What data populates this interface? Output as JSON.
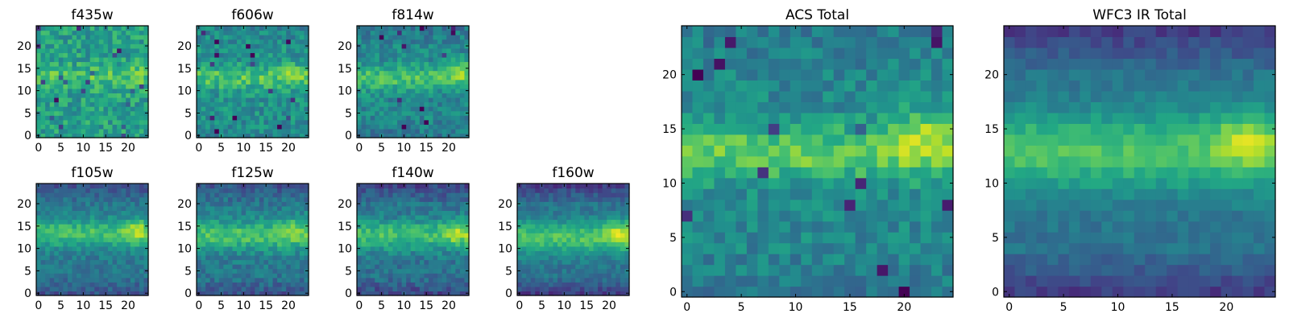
{
  "chart_data": [
    {
      "type": "heatmap",
      "title": "f435w",
      "grid_size": [
        25,
        25
      ],
      "xlim": [
        -0.5,
        24.5
      ],
      "ylim": [
        -0.5,
        24.5
      ],
      "xticks": [
        0,
        5,
        10,
        15,
        20
      ],
      "yticks": [
        0,
        5,
        10,
        15,
        20
      ],
      "colormap": "viridis",
      "pattern": {
        "base": 0.56,
        "band": 0.16,
        "band_center": 13,
        "band_width": 2.6,
        "hot_x": 22,
        "hot_y": 15,
        "hot": 0.04,
        "noise": 0.15,
        "edge_dark": 0.0,
        "block": 1,
        "seed": 3
      }
    },
    {
      "type": "heatmap",
      "title": "f606w",
      "grid_size": [
        25,
        25
      ],
      "xlim": [
        -0.5,
        24.5
      ],
      "ylim": [
        -0.5,
        24.5
      ],
      "xticks": [
        0,
        5,
        10,
        15,
        20
      ],
      "yticks": [
        0,
        5,
        10,
        15,
        20
      ],
      "colormap": "viridis",
      "pattern": {
        "base": 0.5,
        "band": 0.22,
        "band_center": 13,
        "band_width": 2.6,
        "hot_x": 21,
        "hot_y": 14,
        "hot": 0.1,
        "noise": 0.13,
        "edge_dark": 0.04,
        "block": 1,
        "seed": 7
      }
    },
    {
      "type": "heatmap",
      "title": "f814w",
      "grid_size": [
        25,
        25
      ],
      "xlim": [
        -0.5,
        24.5
      ],
      "ylim": [
        -0.5,
        24.5
      ],
      "xticks": [
        0,
        5,
        10,
        15,
        20
      ],
      "yticks": [
        0,
        5,
        10,
        15,
        20
      ],
      "colormap": "viridis",
      "pattern": {
        "base": 0.46,
        "band": 0.24,
        "band_center": 13,
        "band_width": 2.8,
        "hot_x": 22,
        "hot_y": 15,
        "hot": 0.18,
        "noise": 0.12,
        "edge_dark": 0.06,
        "block": 1,
        "seed": 11
      }
    },
    {
      "type": "heatmap",
      "title": "f105w",
      "grid_size": [
        25,
        25
      ],
      "xlim": [
        -0.5,
        24.5
      ],
      "ylim": [
        -0.5,
        24.5
      ],
      "xticks": [
        0,
        5,
        10,
        15,
        20
      ],
      "yticks": [
        0,
        5,
        10,
        15,
        20
      ],
      "colormap": "viridis",
      "pattern": {
        "base": 0.4,
        "band": 0.3,
        "band_center": 13.5,
        "band_width": 3.2,
        "hot_x": 22,
        "hot_y": 14,
        "hot": 0.2,
        "noise": 0.09,
        "edge_dark": 0.14,
        "block": 1,
        "seed": 19
      }
    },
    {
      "type": "heatmap",
      "title": "f125w",
      "grid_size": [
        25,
        25
      ],
      "xlim": [
        -0.5,
        24.5
      ],
      "ylim": [
        -0.5,
        24.5
      ],
      "xticks": [
        0,
        5,
        10,
        15,
        20
      ],
      "yticks": [
        0,
        5,
        10,
        15,
        20
      ],
      "colormap": "viridis",
      "pattern": {
        "base": 0.4,
        "band": 0.32,
        "band_center": 13,
        "band_width": 3.4,
        "hot_x": 21,
        "hot_y": 15,
        "hot": 0.16,
        "noise": 0.1,
        "edge_dark": 0.14,
        "block": 1,
        "seed": 23
      }
    },
    {
      "type": "heatmap",
      "title": "f140w",
      "grid_size": [
        25,
        25
      ],
      "xlim": [
        -0.5,
        24.5
      ],
      "ylim": [
        -0.5,
        24.5
      ],
      "xticks": [
        0,
        5,
        10,
        15,
        20
      ],
      "yticks": [
        0,
        5,
        10,
        15,
        20
      ],
      "colormap": "viridis",
      "pattern": {
        "base": 0.38,
        "band": 0.32,
        "band_center": 13,
        "band_width": 3.4,
        "hot_x": 22,
        "hot_y": 14,
        "hot": 0.22,
        "noise": 0.1,
        "edge_dark": 0.16,
        "block": 1,
        "seed": 29
      }
    },
    {
      "type": "heatmap",
      "title": "f160w",
      "grid_size": [
        25,
        25
      ],
      "xlim": [
        -0.5,
        24.5
      ],
      "ylim": [
        -0.5,
        24.5
      ],
      "xticks": [
        0,
        5,
        10,
        15,
        20
      ],
      "yticks": [
        0,
        5,
        10,
        15,
        20
      ],
      "colormap": "viridis",
      "pattern": {
        "base": 0.38,
        "band": 0.34,
        "band_center": 12.5,
        "band_width": 3.6,
        "hot_x": 22,
        "hot_y": 14,
        "hot": 0.25,
        "noise": 0.08,
        "edge_dark": 0.2,
        "block": 1,
        "seed": 31
      }
    },
    {
      "type": "heatmap",
      "title": "ACS Total",
      "grid_size": [
        25,
        25
      ],
      "xlim": [
        -0.5,
        24.5
      ],
      "ylim": [
        -0.5,
        24.5
      ],
      "xticks": [
        0,
        5,
        10,
        15,
        20
      ],
      "yticks": [
        0,
        5,
        10,
        15,
        20
      ],
      "colormap": "viridis",
      "pattern": {
        "base": 0.46,
        "band": 0.3,
        "band_center": 12.8,
        "band_width": 2.6,
        "hot_x": 22,
        "hot_y": 15,
        "hot": 0.22,
        "noise": 0.11,
        "edge_dark": 0.05,
        "block": 1,
        "seed": 37
      }
    },
    {
      "type": "heatmap",
      "title": "WFC3 IR Total",
      "grid_size": [
        25,
        25
      ],
      "xlim": [
        -0.5,
        24.5
      ],
      "ylim": [
        -0.5,
        24.5
      ],
      "xticks": [
        0,
        5,
        10,
        15,
        20
      ],
      "yticks": [
        0,
        5,
        10,
        15,
        20
      ],
      "colormap": "viridis",
      "pattern": {
        "base": 0.38,
        "band": 0.34,
        "band_center": 13,
        "band_width": 3.6,
        "hot_x": 22,
        "hot_y": 14,
        "hot": 0.22,
        "noise": 0.06,
        "edge_dark": 0.2,
        "block": 1,
        "seed": 41
      }
    }
  ]
}
